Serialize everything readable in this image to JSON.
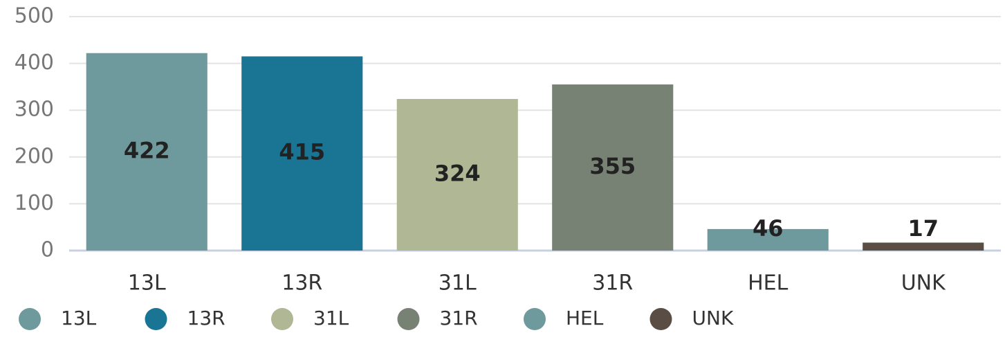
{
  "chart_data": {
    "type": "bar",
    "categories": [
      "13L",
      "13R",
      "31L",
      "31R",
      "HEL",
      "UNK"
    ],
    "values": [
      422,
      415,
      324,
      355,
      46,
      17
    ],
    "colors": [
      "#6f9a9d",
      "#1a7494",
      "#b0b794",
      "#778275",
      "#6f9a9d",
      "#5a4e44"
    ],
    "ylim": [
      0,
      500
    ],
    "yticks": [
      0,
      100,
      200,
      300,
      400,
      500
    ],
    "grid": true,
    "legend": "bottom"
  }
}
